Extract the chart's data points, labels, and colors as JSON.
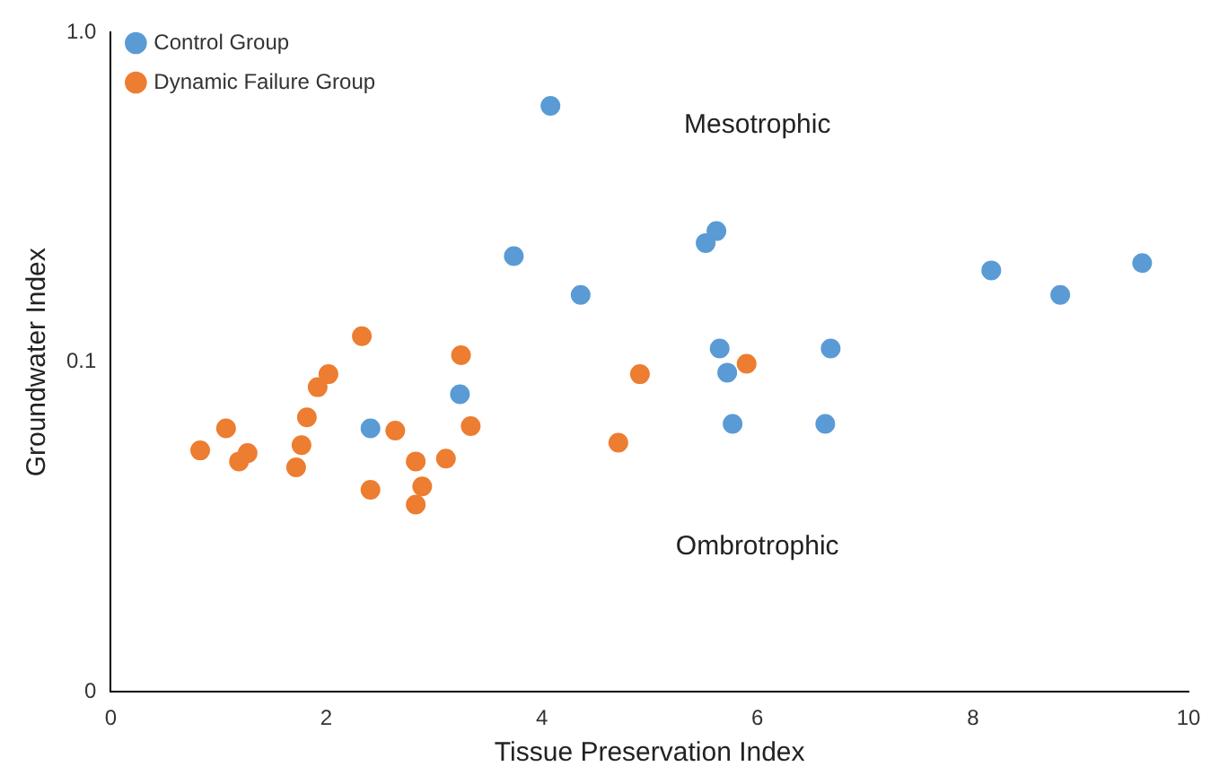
{
  "chart_data": {
    "type": "scatter",
    "xlabel": "Tissue Preservation Index",
    "ylabel": "Groundwater Index",
    "xlim": [
      0,
      10
    ],
    "xticks": [
      0,
      2,
      4,
      6,
      8,
      10
    ],
    "ylim": [
      0.01,
      1
    ],
    "yticks": [
      {
        "value": 0.01,
        "label": "0"
      },
      0.1,
      {
        "value": 1,
        "label": "1.0"
      }
    ],
    "log": "y",
    "grid": false,
    "legend": "top left",
    "marker": "circle",
    "series": [
      {
        "name": "Control Group",
        "color": "#5b9bd5",
        "x": [
          4.08,
          3.74,
          4.36,
          5.62,
          5.52,
          8.17,
          8.81,
          9.57,
          5.65,
          5.72,
          6.68,
          5.77,
          6.63,
          3.24,
          2.41
        ],
        "values": [
          0.6,
          0.21,
          0.16,
          0.25,
          0.23,
          0.19,
          0.16,
          0.2,
          0.11,
          0.093,
          0.11,
          0.065,
          0.065,
          0.08,
          0.063
        ]
      },
      {
        "name": "Dynamic Failure Group",
        "color": "#ed7d31",
        "x": [
          0.83,
          1.07,
          1.19,
          1.27,
          1.72,
          1.77,
          1.82,
          1.92,
          2.02,
          2.33,
          2.41,
          2.64,
          2.83,
          2.83,
          2.89,
          3.11,
          3.25,
          3.34,
          4.71,
          4.91,
          5.9
        ],
        "values": [
          0.054,
          0.063,
          0.05,
          0.053,
          0.048,
          0.056,
          0.068,
          0.084,
          0.092,
          0.12,
          0.041,
          0.062,
          0.05,
          0.037,
          0.042,
          0.051,
          0.105,
          0.064,
          0.057,
          0.092,
          0.099
        ]
      }
    ],
    "annotations": [
      "Mesotrophic",
      "Ombrotrophic"
    ]
  }
}
